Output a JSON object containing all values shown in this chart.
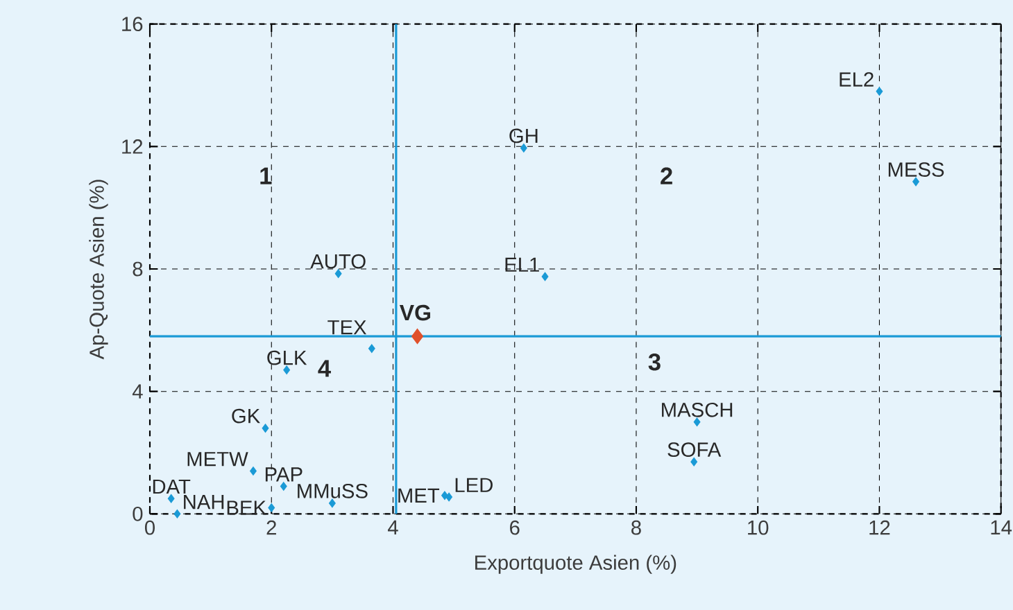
{
  "chart_data": {
    "type": "scatter",
    "xlabel": "Exportquote Asien (%)",
    "ylabel": "Ap-Quote Asien (%)",
    "xlim": [
      0,
      14
    ],
    "xticks": [
      0,
      2,
      4,
      6,
      8,
      10,
      12,
      14
    ],
    "ylim": [
      0,
      16
    ],
    "yticks": [
      0,
      4,
      8,
      12,
      16
    ],
    "grid": true,
    "marker": "diamond",
    "series": [
      {
        "color": "#1a9ad6",
        "x": [
          12.0,
          12.6,
          6.15,
          6.5,
          3.1,
          3.65,
          2.25,
          1.9,
          1.7,
          2.2,
          0.35,
          0.45,
          2.0,
          3.0,
          4.85,
          4.92,
          9.0,
          8.95
        ],
        "values": [
          13.8,
          10.85,
          11.95,
          7.75,
          7.85,
          5.4,
          4.7,
          2.8,
          1.4,
          0.9,
          0.5,
          0.0,
          0.2,
          0.35,
          0.6,
          0.55,
          3.0,
          1.7
        ]
      },
      {
        "name": "VG",
        "color": "#e0502a",
        "x": [
          4.4
        ],
        "values": [
          5.8
        ]
      }
    ],
    "ref_lines": [
      {
        "axis": "x",
        "value": 4.05,
        "color": "#1a9ad6"
      },
      {
        "axis": "y",
        "value": 5.8,
        "color": "#1a9ad6"
      }
    ],
    "annotations": [
      "1",
      "2",
      "3",
      "4",
      {
        "text": "EL2",
        "x": 12.0,
        "y": 13.8
      },
      {
        "text": "MESS",
        "x": 12.6,
        "y": 10.85
      },
      {
        "text": "GH",
        "x": 6.15,
        "y": 11.95
      },
      {
        "text": "EL1",
        "x": 6.5,
        "y": 7.75
      },
      {
        "text": "AUTO",
        "x": 3.1,
        "y": 7.85
      },
      {
        "text": "TEX",
        "x": 3.65,
        "y": 5.4
      },
      {
        "text": "GLK",
        "x": 2.25,
        "y": 4.7
      },
      {
        "text": "GK",
        "x": 1.9,
        "y": 2.8
      },
      {
        "text": "METW",
        "x": 1.7,
        "y": 1.4
      },
      {
        "text": "PAP",
        "x": 2.2,
        "y": 0.9
      },
      {
        "text": "DAT",
        "x": 0.35,
        "y": 0.5
      },
      {
        "text": "NAH",
        "x": 0.45,
        "y": 0.0
      },
      {
        "text": "BEK",
        "x": 2.0,
        "y": 0.2
      },
      {
        "text": "MMuSS",
        "x": 3.0,
        "y": 0.35
      },
      {
        "text": "MET",
        "x": 4.85,
        "y": 0.6
      },
      {
        "text": "LED",
        "x": 4.92,
        "y": 0.55
      },
      {
        "text": "MASCH",
        "x": 9.0,
        "y": 3.0
      },
      {
        "text": "SOFA",
        "x": 8.95,
        "y": 1.7
      }
    ]
  }
}
